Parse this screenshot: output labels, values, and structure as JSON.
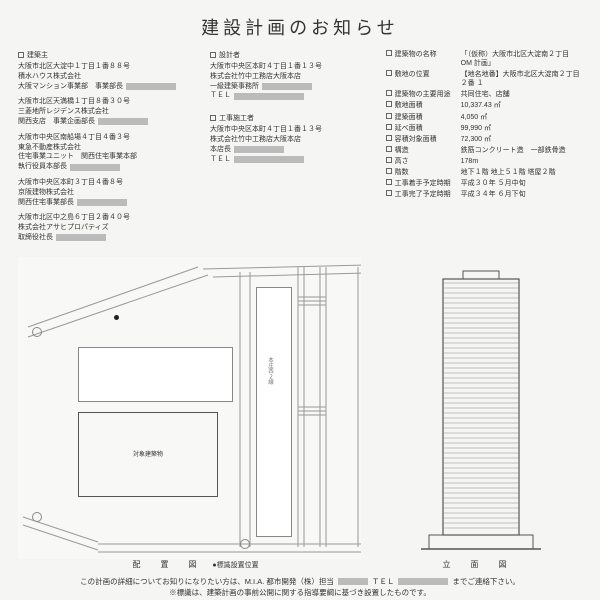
{
  "title": "建設計画のお知らせ",
  "col1": {
    "header": "建築主",
    "entries": [
      {
        "addr": "大阪市北区大淀中１丁目１番８８号",
        "company": "積水ハウス株式会社",
        "role": "大阪マンション事業部　事業部長"
      },
      {
        "addr": "大阪市北区天満橋１丁目８番３０号",
        "company": "三菱地所レジデンス株式会社",
        "role": "関西支店　事業企画部長"
      },
      {
        "addr": "大阪市中央区南船場４丁目４番３号",
        "company": "東急不動産株式会社",
        "role": "住宅事業ユニット　関西住宅事業本部",
        "role2": "執行役員本部長"
      },
      {
        "addr": "大阪市中央区本町３丁目４番８号",
        "company": "京阪建物株式会社",
        "role": "関西住宅事業部長"
      },
      {
        "addr": "大阪市北区中之島６丁目２番４０号",
        "company": "株式会社アサヒプロパティズ",
        "role": "取締役社長"
      }
    ]
  },
  "col2": {
    "h1": "設計者",
    "e1": {
      "addr": "大阪市中央区本町４丁目１番１３号",
      "company": "株式会社竹中工務店大阪本店",
      "role": "一級建築事務所",
      "tel": "ＴＥＬ"
    },
    "h2": "工事施工者",
    "e2": {
      "addr": "大阪市中央区本町４丁目１番１３号",
      "company": "株式会社竹中工務店大阪本店",
      "role": "本店長",
      "tel": "ＴＥＬ"
    }
  },
  "specs": [
    {
      "label": "建築物の名称",
      "val": "「（仮称）大阪市北区大淀南２丁目 OM 計画」"
    },
    {
      "label": "敷地の位置",
      "val": "【地名地番】大阪市北区大淀南２丁目２番 １"
    },
    {
      "label": "建築物の主要用途",
      "val": "共同住宅、店舗"
    },
    {
      "label": "敷地面積",
      "val": "10,337.43 ㎡"
    },
    {
      "label": "建築面積",
      "val": "4,050 ㎡"
    },
    {
      "label": "延べ面積",
      "val": "99,990 ㎡"
    },
    {
      "label": "容積対象面積",
      "val": "72,300 ㎡"
    },
    {
      "label": "構造",
      "val": "鉄筋コンクリート造　一部鉄骨造"
    },
    {
      "label": "高さ",
      "val": "178m"
    },
    {
      "label": "階数",
      "val": "地下１階 地上５１階 塔屋２階"
    },
    {
      "label": "工事着手予定時期",
      "val": "平成３０年 ５月中旬"
    },
    {
      "label": "工事完了予定時期",
      "val": "平成３４年 ６月下旬"
    }
  ],
  "siteplan": {
    "target_label": "対象建築物",
    "street1": "本庄西２線"
  },
  "captions": {
    "site": "配　置　図",
    "marker_note": "●標識設置位置",
    "elev": "立　面　図"
  },
  "footer": {
    "line1a": "この計画の詳細についてお知りになりたい方は、M.I.A. 都市開発（株）担当",
    "line1b": "ＴＥＬ",
    "line1c": "までご連絡下さい。",
    "line2": "※標識は、建築計画の事前公開に関する指導要綱に基づき設置したものです。"
  }
}
